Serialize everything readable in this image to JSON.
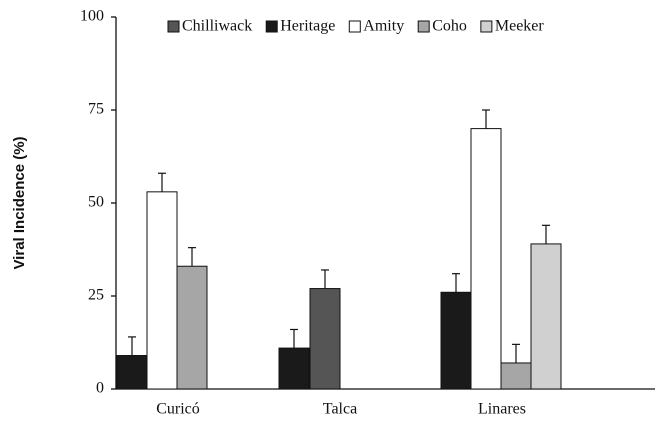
{
  "chart_data": {
    "type": "bar",
    "y_label": "Viral Incidence (%)",
    "categories": [
      "Curicó",
      "Talca",
      "Linares"
    ],
    "series": [
      {
        "name": "Chilliwack",
        "color": "#555555",
        "values": [
          null,
          27,
          null
        ],
        "errors": [
          null,
          5,
          null
        ]
      },
      {
        "name": "Heritage",
        "color": "#1a1a1a",
        "values": [
          9,
          11,
          26
        ],
        "errors": [
          5,
          5,
          5
        ]
      },
      {
        "name": "Amity",
        "color": "#ffffff",
        "values": [
          53,
          null,
          70
        ],
        "errors": [
          5,
          null,
          5
        ]
      },
      {
        "name": "Coho",
        "color": "#a6a6a6",
        "values": [
          33,
          null,
          7
        ],
        "errors": [
          5,
          null,
          5
        ]
      },
      {
        "name": "Meeker",
        "color": "#d0d0d0",
        "values": [
          null,
          null,
          39
        ],
        "errors": [
          null,
          null,
          5
        ]
      }
    ],
    "ylim": [
      0,
      100
    ],
    "yticks": [
      0,
      25,
      50,
      75,
      100
    ],
    "legend": "top"
  }
}
